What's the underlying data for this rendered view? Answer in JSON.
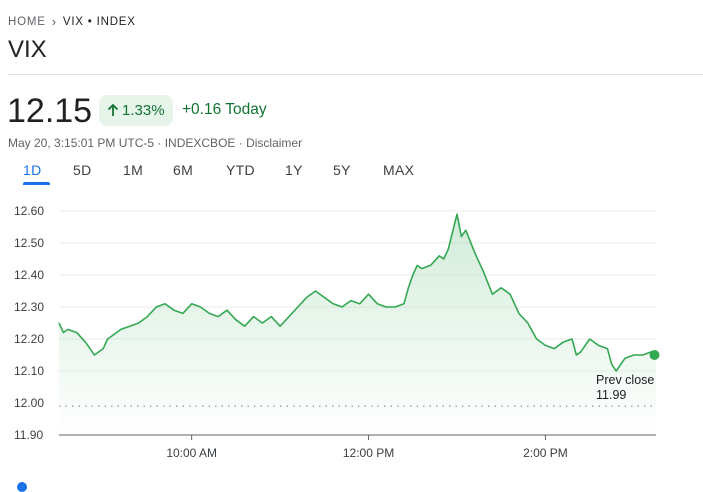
{
  "breadcrumb": {
    "home": "HOME",
    "current": "VIX • INDEX"
  },
  "title": "VIX",
  "quote": {
    "price": "12.15",
    "change_percent": "1.33%",
    "change_today": "+0.16 Today",
    "meta": "May 20, 3:15:01 PM UTC-5 · INDEXCBOE · Disclaimer"
  },
  "tabs": [
    "1D",
    "5D",
    "1M",
    "6M",
    "YTD",
    "1Y",
    "5Y",
    "MAX"
  ],
  "active_tab": "1D",
  "colors": {
    "line": "#34a853",
    "positive_text": "#137333",
    "positive_bg": "#e6f4ea",
    "accent": "#1a73e8"
  },
  "chart_data": {
    "type": "line",
    "title": "",
    "xlabel": "",
    "ylabel": "",
    "ylim": [
      11.9,
      12.6
    ],
    "y_ticks": [
      "12.60",
      "12.50",
      "12.40",
      "12.30",
      "12.20",
      "12.10",
      "12.00",
      "11.90"
    ],
    "y_tick_values": [
      12.6,
      12.5,
      12.4,
      12.3,
      12.2,
      12.1,
      12.0,
      11.9
    ],
    "x_ticks": [
      "10:00 AM",
      "12:00 PM",
      "2:00 PM"
    ],
    "x_tick_values": [
      10.0,
      12.0,
      14.0
    ],
    "xlim": [
      8.5,
      15.25
    ],
    "prev_close": {
      "label": "Prev close",
      "value": "11.99",
      "level": 11.99
    },
    "series": [
      {
        "name": "VIX",
        "x": [
          8.5,
          8.55,
          8.6,
          8.7,
          8.8,
          8.85,
          8.9,
          9.0,
          9.05,
          9.1,
          9.2,
          9.3,
          9.4,
          9.5,
          9.6,
          9.7,
          9.8,
          9.9,
          10.0,
          10.1,
          10.2,
          10.3,
          10.4,
          10.5,
          10.6,
          10.7,
          10.8,
          10.9,
          11.0,
          11.1,
          11.2,
          11.3,
          11.4,
          11.5,
          11.6,
          11.7,
          11.8,
          11.9,
          12.0,
          12.1,
          12.2,
          12.3,
          12.4,
          12.45,
          12.5,
          12.55,
          12.6,
          12.7,
          12.8,
          12.85,
          12.9,
          13.0,
          13.05,
          13.1,
          13.2,
          13.3,
          13.4,
          13.5,
          13.6,
          13.7,
          13.8,
          13.9,
          14.0,
          14.1,
          14.2,
          14.3,
          14.35,
          14.4,
          14.5,
          14.6,
          14.7,
          14.75,
          14.8,
          14.9,
          15.0,
          15.1,
          15.2,
          15.25
        ],
        "values": [
          12.25,
          12.22,
          12.23,
          12.22,
          12.19,
          12.17,
          12.15,
          12.17,
          12.2,
          12.21,
          12.23,
          12.24,
          12.25,
          12.27,
          12.3,
          12.31,
          12.29,
          12.28,
          12.31,
          12.3,
          12.28,
          12.27,
          12.29,
          12.26,
          12.24,
          12.27,
          12.25,
          12.27,
          12.24,
          12.27,
          12.3,
          12.33,
          12.35,
          12.33,
          12.31,
          12.3,
          12.32,
          12.31,
          12.34,
          12.31,
          12.3,
          12.3,
          12.31,
          12.36,
          12.4,
          12.43,
          12.42,
          12.43,
          12.46,
          12.45,
          12.48,
          12.59,
          12.52,
          12.54,
          12.47,
          12.41,
          12.34,
          12.36,
          12.34,
          12.28,
          12.25,
          12.2,
          12.18,
          12.17,
          12.19,
          12.2,
          12.15,
          12.16,
          12.2,
          12.18,
          12.17,
          12.12,
          12.1,
          12.14,
          12.15,
          12.15,
          12.16,
          12.15
        ]
      }
    ]
  }
}
